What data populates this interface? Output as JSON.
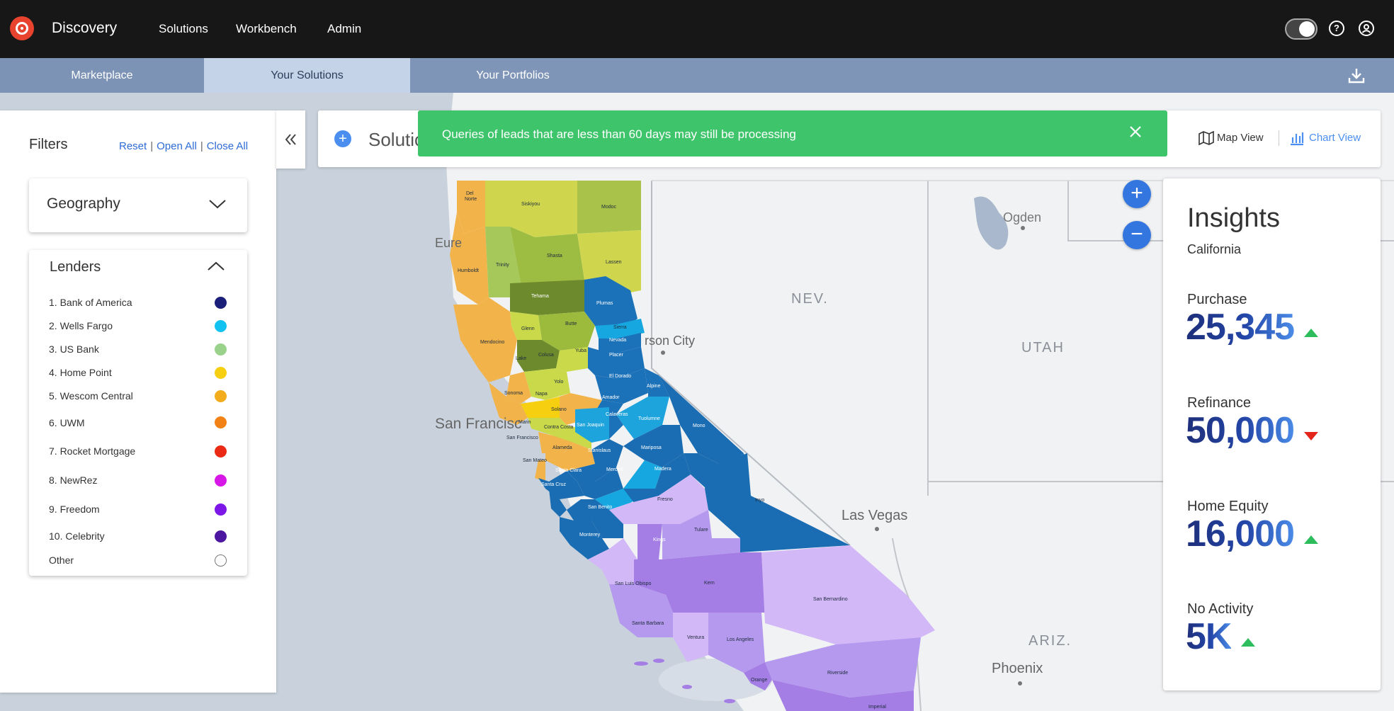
{
  "app": {
    "title": "Discovery"
  },
  "nav": {
    "items": [
      "Solutions",
      "Workbench",
      "Admin"
    ]
  },
  "top_icons": {
    "toggle": "dark-mode-toggle",
    "help": "?",
    "account": "account-icon"
  },
  "tabs": [
    {
      "label": "Marketplace",
      "active": false
    },
    {
      "label": "Your Solutions",
      "active": true
    },
    {
      "label": "Your Portfolios",
      "active": false
    }
  ],
  "filters": {
    "title": "Filters",
    "reset": "Reset",
    "open_all": "Open All",
    "close_all": "Close All",
    "geography": "Geography",
    "lenders_title": "Lenders",
    "lenders": [
      {
        "label": "1. Bank of America",
        "color": "#1b1f7a"
      },
      {
        "label": "2. Wells Fargo",
        "color": "#12c2f0"
      },
      {
        "label": "3. US Bank",
        "color": "#9ad18b"
      },
      {
        "label": "4. Home Point",
        "color": "#f5cf10"
      },
      {
        "label": "5. Wescom Central",
        "color": "#f2ac1c"
      },
      {
        "label": "6. UWM",
        "color": "#f38216"
      },
      {
        "label": "7. Rocket Mortgage",
        "color": "#ea2a14"
      },
      {
        "label": "8. NewRez",
        "color": "#d716e8"
      },
      {
        "label": "9. Freedom",
        "color": "#7d17e8"
      },
      {
        "label": "10. Celebrity",
        "color": "#4d16a0"
      },
      {
        "label": "Other",
        "color": "#ffffff"
      }
    ]
  },
  "solution": {
    "label": "Solutio"
  },
  "banner": {
    "text": "Queries of leads that are less than 60 days may still be processing"
  },
  "views": {
    "map": "Map View",
    "chart": "Chart View"
  },
  "map": {
    "labels": {
      "nev": "NEV.",
      "utah": "UTAH",
      "ariz": "ARIZ.",
      "ogden": "Ogden",
      "carson": "rson City",
      "vegas": "Las Vegas",
      "phoenix": "Phoenix",
      "sf": "San Francisc",
      "eure": "Eure"
    },
    "counties": [
      "Del Norte",
      "Siskiyou",
      "Modoc",
      "Humboldt",
      "Trinity",
      "Shasta",
      "Lassen",
      "Tehama",
      "Plumas",
      "Glenn",
      "Butte",
      "Sierra",
      "Nevada",
      "Mendocino",
      "Colusa",
      "Yuba",
      "Placer",
      "Lake",
      "Yolo",
      "El Dorado",
      "Alpine",
      "Sonoma",
      "Napa",
      "Solano",
      "Amador",
      "Calaveras",
      "Tuolumne",
      "Mono",
      "Marin",
      "Contra Costa",
      "San Joaquin",
      "San Francisco",
      "Alameda",
      "Stanislaus",
      "Mariposa",
      "San Mateo",
      "Santa Clara",
      "Merced",
      "Madera",
      "Santa Cruz",
      "Fresno",
      "Inyo",
      "San Benito",
      "Monterey",
      "Kings",
      "Tulare",
      "San Luis Obispo",
      "Kern",
      "San Bernardino",
      "Santa Barbara",
      "Ventura",
      "Los Angeles",
      "Orange",
      "Riverside",
      "Imperial"
    ]
  },
  "insights": {
    "title": "Insights",
    "region": "California",
    "metrics": [
      {
        "label": "Purchase",
        "value": "25,345",
        "trend": "up"
      },
      {
        "label": "Refinance",
        "value": "50,000",
        "trend": "down"
      },
      {
        "label": "Home Equity",
        "value": "16,000",
        "trend": "up"
      },
      {
        "label": "No Activity",
        "value": "5K",
        "trend": "up"
      }
    ]
  }
}
